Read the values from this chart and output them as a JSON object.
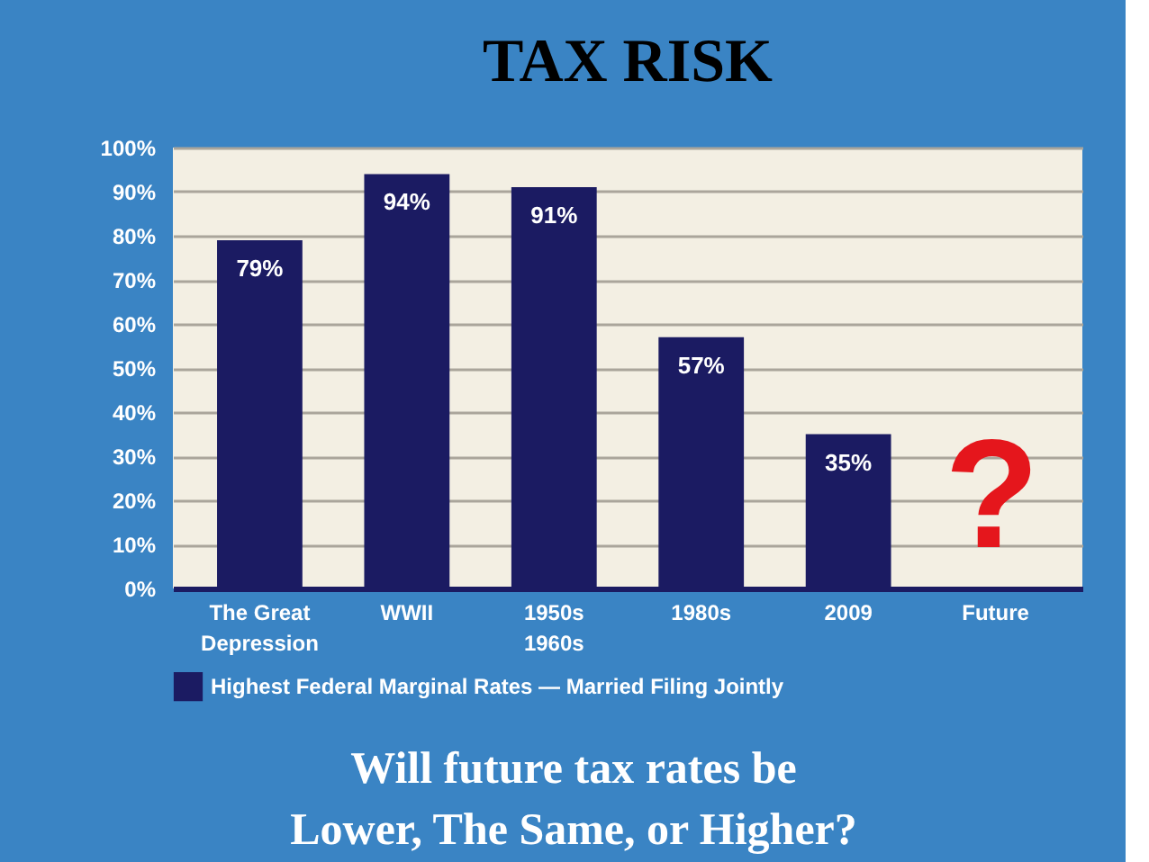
{
  "chart_data": {
    "type": "bar",
    "title": "TAX RISK",
    "categories": [
      "The Great\nDepression",
      "WWII",
      "1950s\n1960s",
      "1980s",
      "2009",
      "Future"
    ],
    "series": [
      {
        "name": "Highest Federal Marginal Rates — Married Filing Jointly",
        "color": "#1b1b62",
        "values": [
          79,
          94,
          91,
          57,
          35,
          null
        ],
        "value_labels": [
          "79%",
          "94%",
          "91%",
          "57%",
          "35%",
          null
        ]
      }
    ],
    "ylim": [
      0,
      100
    ],
    "yticks": [
      {
        "value": 0,
        "label": "0%"
      },
      {
        "value": 10,
        "label": "10%"
      },
      {
        "value": 20,
        "label": "20%"
      },
      {
        "value": 30,
        "label": "30%"
      },
      {
        "value": 40,
        "label": "40%"
      },
      {
        "value": 50,
        "label": "50%"
      },
      {
        "value": 60,
        "label": "60%"
      },
      {
        "value": 70,
        "label": "70%"
      },
      {
        "value": 80,
        "label": "80%"
      },
      {
        "value": 90,
        "label": "90%"
      },
      {
        "value": 100,
        "label": "100%"
      }
    ],
    "grid": "y",
    "legend": "bottom",
    "annotations": [
      "?",
      "Will future tax rates be\nLower, The Same, or Higher?"
    ]
  }
}
